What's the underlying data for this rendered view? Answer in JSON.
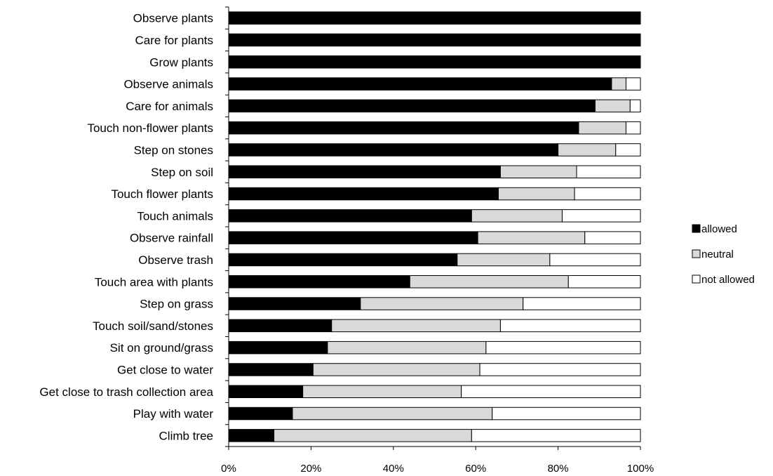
{
  "chart_data": {
    "type": "bar",
    "orientation": "horizontal",
    "stacked": true,
    "percent_stacked": true,
    "categories": [
      "Observe plants",
      "Care for plants",
      "Grow plants",
      "Observe animals",
      "Care for animals",
      "Touch non-flower plants",
      "Step on stones",
      "Step on soil",
      "Touch flower plants",
      "Touch animals",
      "Observe rainfall",
      "Observe trash",
      "Touch area with plants",
      "Step on grass",
      "Touch soil/sand/stones",
      "Sit on ground/grass",
      "Get close to water",
      "Get close to trash collection area",
      "Play with water",
      "Climb tree"
    ],
    "series": [
      {
        "name": "allowed",
        "color": "#000000",
        "values": [
          100,
          100,
          100,
          93,
          89,
          85,
          80,
          66,
          65.5,
          59,
          60.5,
          55.5,
          44,
          32,
          25,
          24,
          20.5,
          18,
          15.5,
          11
        ]
      },
      {
        "name": "neutral",
        "color": "#d9d9d9",
        "values": [
          0,
          0,
          0,
          3.5,
          8.5,
          11.5,
          14,
          18.5,
          18.5,
          22,
          26,
          22.5,
          38.5,
          39.5,
          41,
          38.5,
          40.5,
          38.5,
          48.5,
          48
        ]
      },
      {
        "name": "not allowed",
        "color": "#ffffff",
        "values": [
          0,
          0,
          0,
          3.5,
          2.5,
          3.5,
          6,
          15.5,
          16,
          19,
          13.5,
          22,
          17.5,
          28.5,
          34,
          37.5,
          39,
          43.5,
          36,
          41
        ]
      }
    ],
    "x_ticks": [
      "0%",
      "20%",
      "40%",
      "60%",
      "80%",
      "100%"
    ],
    "xlim": [
      0,
      100
    ],
    "legend_position": "right",
    "grid": false
  }
}
